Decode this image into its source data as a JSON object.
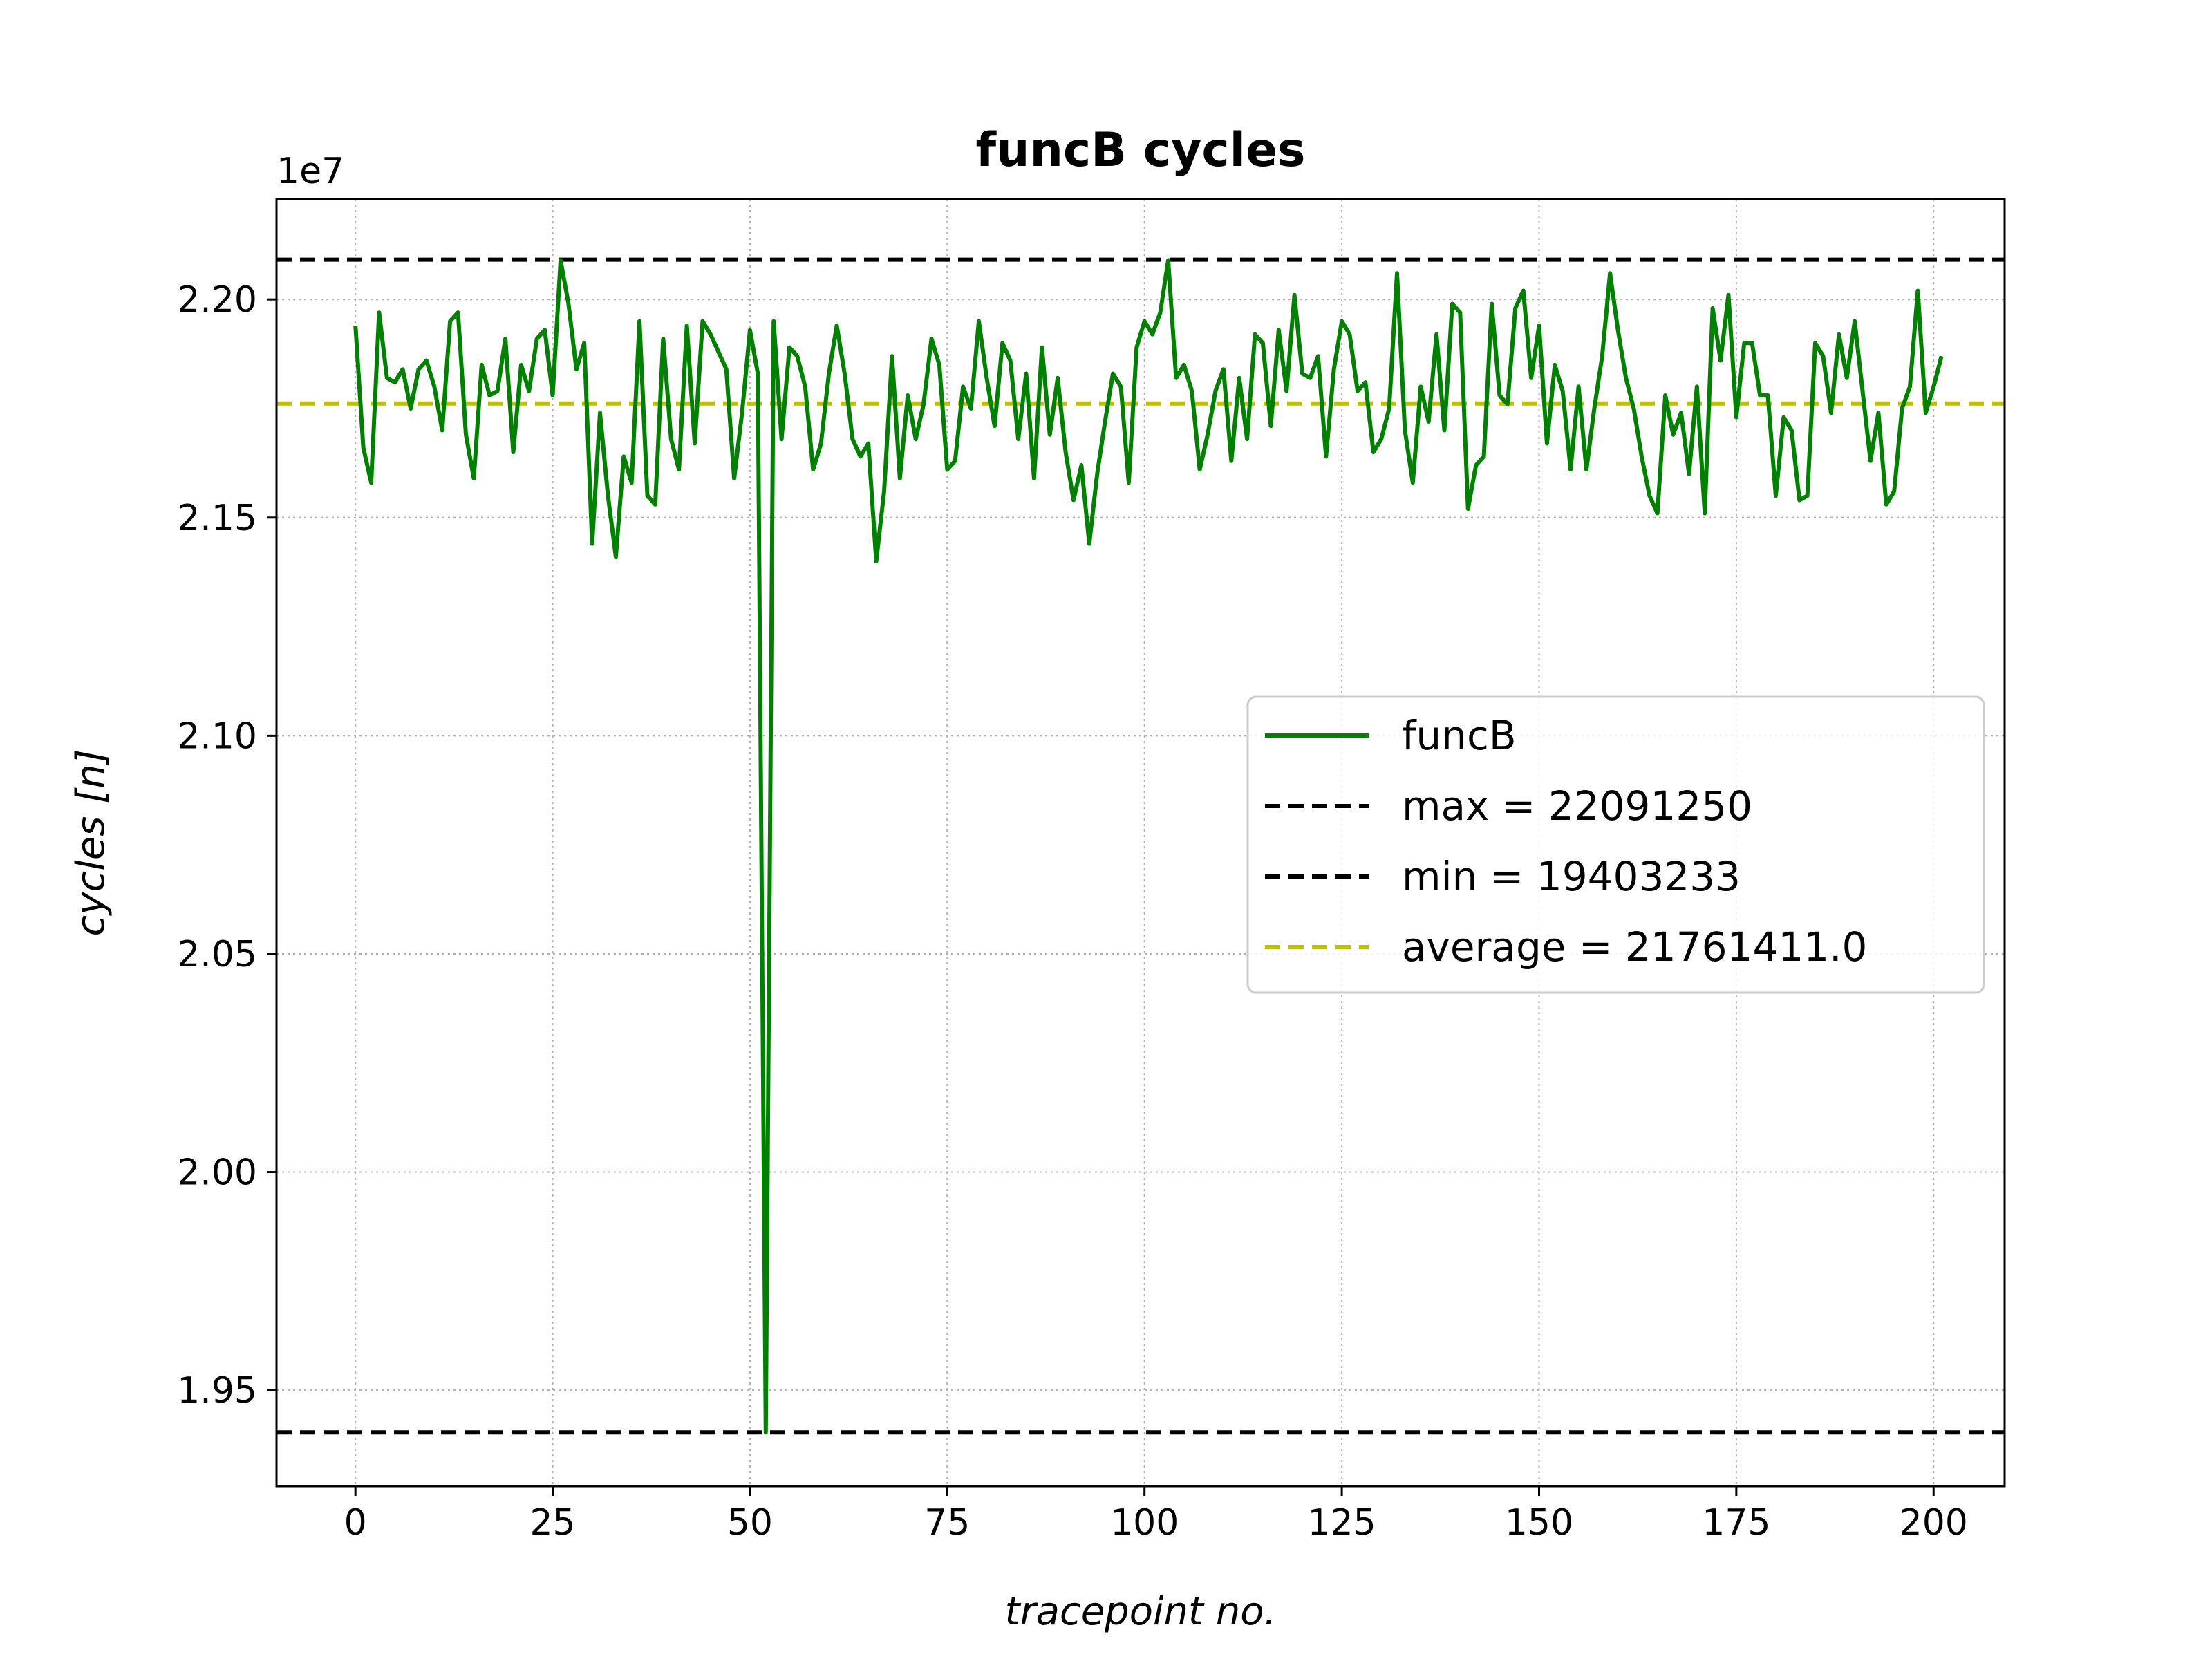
{
  "chart_data": {
    "type": "line",
    "title": "funcB cycles",
    "xlabel": "tracepoint no.",
    "ylabel": "cycles [n]",
    "y_offset_label": "1e7",
    "xlim": [
      -10,
      209
    ],
    "ylim": [
      19280000,
      22230000
    ],
    "x_ticks": [
      0,
      25,
      50,
      75,
      100,
      125,
      150,
      175,
      200
    ],
    "x_tick_labels": [
      "0",
      "25",
      "50",
      "75",
      "100",
      "125",
      "150",
      "175",
      "200"
    ],
    "y_ticks": [
      19500000,
      20000000,
      20500000,
      21000000,
      21500000,
      22000000
    ],
    "y_tick_labels": [
      "1.95",
      "2.00",
      "2.05",
      "2.10",
      "2.15",
      "2.20"
    ],
    "grid": true,
    "legend_position": "center-right",
    "series": [
      {
        "name": "funcB",
        "style": "solid",
        "color": "#008000",
        "x_start": 0,
        "x_step": 1,
        "values": [
          21940000,
          21660000,
          21580000,
          21970000,
          21820000,
          21810000,
          21840000,
          21750000,
          21840000,
          21860000,
          21800000,
          21700000,
          21950000,
          21970000,
          21690000,
          21590000,
          21850000,
          21780000,
          21790000,
          21910000,
          21650000,
          21850000,
          21790000,
          21910000,
          21930000,
          21780000,
          22090000,
          21990000,
          21840000,
          21900000,
          21440000,
          21740000,
          21550000,
          21410000,
          21640000,
          21580000,
          21950000,
          21550000,
          21530000,
          21910000,
          21680000,
          21610000,
          21940000,
          21670000,
          21950000,
          21920000,
          21880000,
          21840000,
          21590000,
          21740000,
          21930000,
          21830000,
          19403233,
          21950000,
          21680000,
          21890000,
          21870000,
          21800000,
          21610000,
          21670000,
          21830000,
          21940000,
          21830000,
          21680000,
          21640000,
          21670000,
          21400000,
          21560000,
          21870000,
          21590000,
          21780000,
          21680000,
          21760000,
          21910000,
          21850000,
          21610000,
          21630000,
          21800000,
          21750000,
          21950000,
          21820000,
          21710000,
          21900000,
          21860000,
          21680000,
          21830000,
          21590000,
          21890000,
          21690000,
          21820000,
          21650000,
          21540000,
          21620000,
          21440000,
          21600000,
          21720000,
          21830000,
          21800000,
          21580000,
          21890000,
          21950000,
          21920000,
          21970000,
          22090000,
          21820000,
          21850000,
          21790000,
          21610000,
          21690000,
          21790000,
          21840000,
          21630000,
          21820000,
          21680000,
          21920000,
          21900000,
          21710000,
          21930000,
          21790000,
          22010000,
          21830000,
          21820000,
          21870000,
          21640000,
          21840000,
          21950000,
          21920000,
          21790000,
          21810000,
          21650000,
          21680000,
          21750000,
          22060000,
          21700000,
          21580000,
          21800000,
          21720000,
          21920000,
          21700000,
          21990000,
          21970000,
          21520000,
          21620000,
          21640000,
          21990000,
          21780000,
          21760000,
          21980000,
          22020000,
          21820000,
          21940000,
          21670000,
          21850000,
          21790000,
          21610000,
          21800000,
          21610000,
          21750000,
          21870000,
          22060000,
          21930000,
          21820000,
          21750000,
          21640000,
          21550000,
          21510000,
          21780000,
          21690000,
          21740000,
          21600000,
          21800000,
          21510000,
          21980000,
          21860000,
          22010000,
          21730000,
          21900000,
          21900000,
          21780000,
          21780000,
          21550000,
          21730000,
          21700000,
          21540000,
          21550000,
          21900000,
          21870000,
          21740000,
          21920000,
          21820000,
          21950000,
          21790000,
          21630000,
          21740000,
          21530000,
          21560000,
          21750000,
          21800000,
          22020000,
          21740000,
          21800000,
          21870000
        ]
      },
      {
        "name": "max = 22091250",
        "style": "dashed",
        "color": "#000000",
        "y": 22091250
      },
      {
        "name": "min = 19403233",
        "style": "dashed",
        "color": "#000000",
        "y": 19403233
      },
      {
        "name": "average = 21761411.0",
        "style": "dashed",
        "color": "#bfbf00",
        "y": 21761411.0
      }
    ]
  }
}
